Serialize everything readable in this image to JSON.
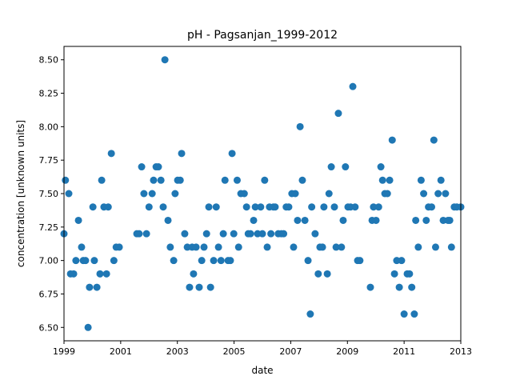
{
  "chart_data": {
    "type": "scatter",
    "title": "pH - Pagsanjan_1999-2012",
    "x_label": "date",
    "y_label": "concentration [unknown units]",
    "series": [
      {
        "color": "#1f77b4",
        "x": [
          1999.0,
          1999.05,
          1999.17,
          1999.23,
          1999.34,
          1999.42,
          1999.51,
          1999.62,
          1999.68,
          1999.76,
          1999.85,
          1999.9,
          2000.02,
          2000.07,
          2000.16,
          2000.27,
          2000.33,
          2000.41,
          2000.5,
          2000.56,
          2000.67,
          2000.76,
          2000.84,
          2000.95,
          2001.57,
          2001.65,
          2001.74,
          2001.82,
          2001.91,
          2002.0,
          2002.11,
          2002.16,
          2002.25,
          2002.33,
          2002.42,
          2002.5,
          2002.56,
          2002.67,
          2002.75,
          2002.87,
          2002.92,
          2003.01,
          2003.1,
          2003.15,
          2003.26,
          2003.35,
          2003.43,
          2003.52,
          2003.57,
          2003.66,
          2003.77,
          2003.86,
          2003.94,
          2004.03,
          2004.11,
          2004.17,
          2004.28,
          2004.37,
          2004.45,
          2004.54,
          2004.62,
          2004.68,
          2004.79,
          2004.87,
          2004.93,
          2004.99,
          2005.11,
          2005.16,
          2005.24,
          2005.36,
          2005.44,
          2005.5,
          2005.58,
          2005.69,
          2005.75,
          2005.83,
          2005.94,
          2006.0,
          2006.08,
          2006.17,
          2006.25,
          2006.3,
          2006.39,
          2006.45,
          2006.56,
          2006.67,
          2006.75,
          2006.84,
          2006.93,
          2007.04,
          2007.1,
          2007.16,
          2007.24,
          2007.33,
          2007.41,
          2007.5,
          2007.61,
          2007.69,
          2007.74,
          2007.86,
          2007.97,
          2008.03,
          2008.12,
          2008.17,
          2008.29,
          2008.35,
          2008.43,
          2008.54,
          2008.6,
          2008.68,
          2008.79,
          2008.85,
          2008.93,
          2009.02,
          2009.11,
          2009.19,
          2009.27,
          2009.36,
          2009.44,
          2009.81,
          2009.87,
          2009.92,
          2010.01,
          2010.1,
          2010.18,
          2010.24,
          2010.32,
          2010.41,
          2010.49,
          2010.58,
          2010.66,
          2010.74,
          2010.83,
          2010.91,
          2011.0,
          2011.11,
          2011.19,
          2011.27,
          2011.36,
          2011.41,
          2011.5,
          2011.6,
          2011.69,
          2011.78,
          2011.86,
          2011.97,
          2012.05,
          2012.11,
          2012.2,
          2012.3,
          2012.38,
          2012.46,
          2012.55,
          2012.61,
          2012.67,
          2012.77,
          2012.86,
          2013.0
        ],
        "values": [
          7.2,
          7.6,
          7.5,
          6.9,
          6.9,
          7.0,
          7.3,
          7.1,
          7.0,
          7.0,
          6.5,
          6.8,
          7.4,
          7.0,
          6.8,
          6.9,
          7.6,
          7.4,
          6.9,
          7.4,
          7.8,
          7.0,
          7.1,
          7.1,
          7.2,
          7.2,
          7.7,
          7.5,
          7.2,
          7.4,
          7.5,
          7.6,
          7.7,
          7.7,
          7.6,
          7.4,
          8.5,
          7.3,
          7.1,
          7.0,
          7.5,
          7.6,
          7.6,
          7.8,
          7.2,
          7.1,
          6.8,
          7.1,
          6.9,
          7.1,
          6.8,
          7.0,
          7.1,
          7.2,
          7.4,
          6.8,
          7.0,
          7.4,
          7.1,
          7.0,
          7.2,
          7.6,
          7.0,
          7.0,
          7.8,
          7.2,
          7.6,
          7.1,
          7.5,
          7.5,
          7.4,
          7.2,
          7.2,
          7.3,
          7.4,
          7.2,
          7.4,
          7.2,
          7.6,
          7.1,
          7.4,
          7.2,
          7.4,
          7.4,
          7.2,
          7.2,
          7.2,
          7.4,
          7.4,
          7.5,
          7.1,
          7.5,
          7.3,
          8.0,
          7.6,
          7.3,
          7.0,
          6.6,
          7.4,
          7.2,
          6.9,
          7.1,
          7.1,
          7.4,
          6.9,
          7.5,
          7.7,
          7.4,
          7.1,
          8.1,
          7.1,
          7.3,
          7.7,
          7.4,
          7.4,
          8.3,
          7.4,
          7.0,
          7.0,
          6.8,
          7.3,
          7.4,
          7.3,
          7.4,
          7.7,
          7.6,
          7.5,
          7.5,
          7.6,
          7.9,
          6.9,
          7.0,
          6.8,
          7.0,
          6.6,
          6.9,
          6.9,
          6.8,
          6.6,
          7.3,
          7.1,
          7.6,
          7.5,
          7.3,
          7.4,
          7.4,
          7.9,
          7.1,
          7.5,
          7.6,
          7.3,
          7.5,
          7.3,
          7.3,
          7.1,
          7.4,
          7.4,
          7.4
        ]
      }
    ],
    "xlim": [
      1999,
      2013
    ],
    "xticks": [
      1999,
      2001,
      2003,
      2005,
      2007,
      2009,
      2011,
      2013
    ],
    "ylim": [
      6.4,
      8.6
    ],
    "yticks": [
      {
        "value": 6.5,
        "label": "6.50"
      },
      {
        "value": 6.75,
        "label": "6.75"
      },
      {
        "value": 7.0,
        "label": "7.00"
      },
      {
        "value": 7.25,
        "label": "7.25"
      },
      {
        "value": 7.5,
        "label": "7.50"
      },
      {
        "value": 7.75,
        "label": "7.75"
      },
      {
        "value": 8.0,
        "label": "8.00"
      },
      {
        "value": 8.25,
        "label": "8.25"
      },
      {
        "value": 8.5,
        "label": "8.50"
      }
    ]
  }
}
